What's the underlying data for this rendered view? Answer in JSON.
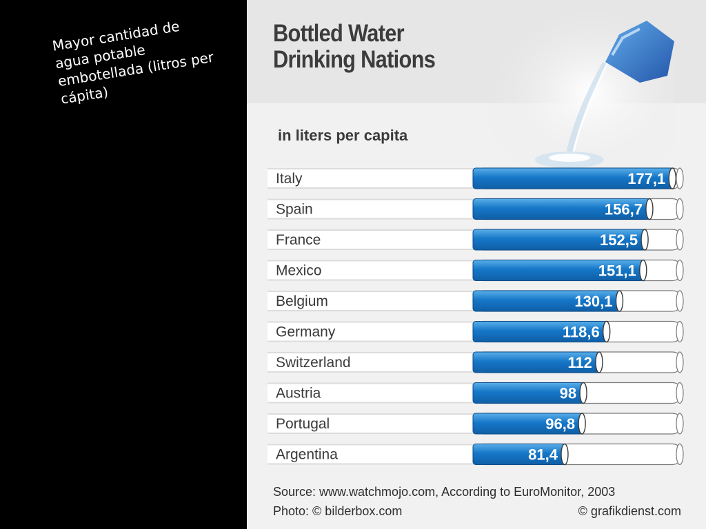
{
  "caption": "Mayor cantidad de\nagua potable\nembotellada (litros per\ncápita)",
  "source": "Source: www.watchmojo.com, According to EuroMonitor, 2003",
  "photo_credit": "Photo: © bilderbox.com",
  "publisher": "© grafikdienst.com",
  "colors": {
    "bar": "#1677c8",
    "bar_highlight": "#5aaee8",
    "track": "#ffffff",
    "row_band": "#dcdcdc",
    "label": "#3a3a3a",
    "value_text": "#ffffff"
  },
  "chart_data": {
    "type": "bar",
    "orientation": "horizontal",
    "title": "Bottled Water\nDrinking Nations",
    "subtitle": "in liters per capita",
    "categories": [
      "Italy",
      "Spain",
      "France",
      "Mexico",
      "Belgium",
      "Germany",
      "Switzerland",
      "Austria",
      "Portugal",
      "Argentina"
    ],
    "values": [
      177.1,
      156.7,
      152.5,
      151.1,
      130.1,
      118.6,
      112,
      98,
      96.8,
      81.4
    ],
    "value_labels": [
      "177,1",
      "156,7",
      "152,5",
      "151,1",
      "130,1",
      "118,6",
      "112",
      "98",
      "96,8",
      "81,4"
    ],
    "xlim": [
      0,
      180
    ],
    "grid": false,
    "legend": "none"
  }
}
